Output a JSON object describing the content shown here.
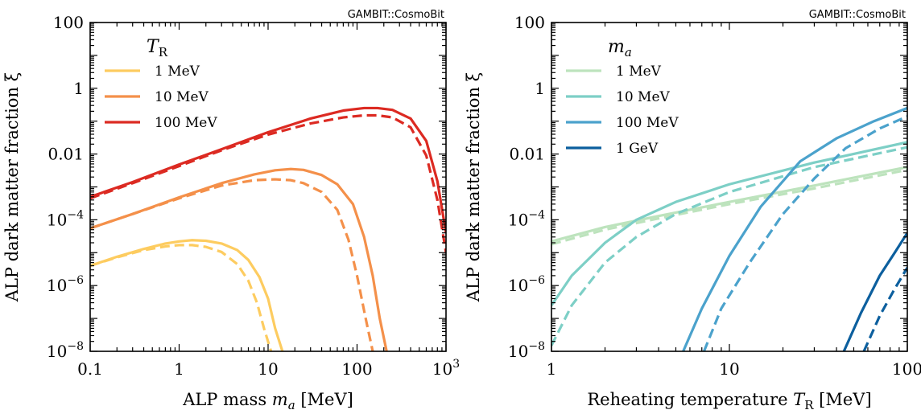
{
  "chart_data": [
    {
      "type": "line",
      "watermark": "GAMBIT::CosmoBit",
      "xlabel": "ALP mass m_a [MeV]",
      "ylabel": "ALP dark matter fraction ξ",
      "xscale": "log",
      "yscale": "log",
      "xlim": [
        0.1,
        1000
      ],
      "ylim": [
        1e-08,
        100
      ],
      "xticks": [
        {
          "value": 0.1,
          "label": "0.1"
        },
        {
          "value": 1,
          "label": "1"
        },
        {
          "value": 10,
          "label": "10"
        },
        {
          "value": 100,
          "label": "100"
        },
        {
          "value": 1000,
          "label": "10^3"
        }
      ],
      "yticks": [
        {
          "value": 1e-08,
          "label": "10^-8"
        },
        {
          "value": 1e-06,
          "label": "10^-6"
        },
        {
          "value": 0.0001,
          "label": "10^-4"
        },
        {
          "value": 0.01,
          "label": "0.01"
        },
        {
          "value": 1,
          "label": "1"
        },
        {
          "value": 100,
          "label": "100"
        }
      ],
      "legend": {
        "title": "T_R",
        "placement": "top-left"
      },
      "series": [
        {
          "name": "1 MeV",
          "color": "#fdcc60",
          "solid": [
            [
              0.1,
              4e-06
            ],
            [
              0.2,
              7.5e-06
            ],
            [
              0.4,
              1.3e-05
            ],
            [
              0.7,
              1.9e-05
            ],
            [
              1.0,
              2.2e-05
            ],
            [
              1.4,
              2.4e-05
            ],
            [
              2.0,
              2.3e-05
            ],
            [
              3.0,
              1.9e-05
            ],
            [
              4.5,
              1.2e-05
            ],
            [
              6.0,
              6e-06
            ],
            [
              8.0,
              1.8e-06
            ],
            [
              10.0,
              4e-07
            ],
            [
              12.0,
              5e-08
            ],
            [
              14.5,
              1e-08
            ]
          ],
          "dashed": [
            [
              0.1,
              4e-06
            ],
            [
              0.2,
              7.2e-06
            ],
            [
              0.4,
              1.2e-05
            ],
            [
              0.7,
              1.55e-05
            ],
            [
              1.0,
              1.7e-05
            ],
            [
              1.4,
              1.7e-05
            ],
            [
              2.0,
              1.5e-05
            ],
            [
              3.0,
              1.05e-05
            ],
            [
              4.5,
              4.5e-06
            ],
            [
              6.0,
              1.4e-06
            ],
            [
              7.5,
              3e-07
            ],
            [
              9.0,
              5e-08
            ],
            [
              10.8,
              1e-08
            ]
          ]
        },
        {
          "name": "10 MeV",
          "color": "#f4904a",
          "solid": [
            [
              0.1,
              5.5e-05
            ],
            [
              0.3,
              0.00015
            ],
            [
              1.0,
              0.00048
            ],
            [
              3.0,
              0.0013
            ],
            [
              7.0,
              0.0024
            ],
            [
              12.0,
              0.0032
            ],
            [
              18.0,
              0.0035
            ],
            [
              25.0,
              0.0033
            ],
            [
              40.0,
              0.0023
            ],
            [
              60.0,
              0.0012
            ],
            [
              90.0,
              0.0003
            ],
            [
              120.0,
              3e-05
            ],
            [
              150.0,
              2e-06
            ],
            [
              180.0,
              1e-07
            ],
            [
              215.0,
              1e-08
            ]
          ],
          "dashed": [
            [
              0.1,
              5.5e-05
            ],
            [
              0.3,
              0.00015
            ],
            [
              1.0,
              0.00045
            ],
            [
              3.0,
              0.0011
            ],
            [
              7.0,
              0.0016
            ],
            [
              12.0,
              0.0017
            ],
            [
              18.0,
              0.0016
            ],
            [
              25.0,
              0.0013
            ],
            [
              40.0,
              0.0007
            ],
            [
              60.0,
              0.0002
            ],
            [
              80.0,
              2.5e-05
            ],
            [
              100.0,
              2e-06
            ],
            [
              125.0,
              1e-07
            ],
            [
              150.0,
              1e-08
            ]
          ]
        },
        {
          "name": "100 MeV",
          "color": "#dc2a22",
          "solid": [
            [
              0.1,
              0.0005
            ],
            [
              0.3,
              0.0014
            ],
            [
              1.0,
              0.0048
            ],
            [
              3.0,
              0.014
            ],
            [
              10.0,
              0.046
            ],
            [
              30.0,
              0.12
            ],
            [
              70.0,
              0.21
            ],
            [
              120.0,
              0.25
            ],
            [
              170.0,
              0.25
            ],
            [
              250.0,
              0.22
            ],
            [
              400.0,
              0.12
            ],
            [
              600.0,
              0.025
            ],
            [
              800.0,
              0.0015
            ],
            [
              1000.0,
              4e-05
            ]
          ],
          "dashed": [
            [
              0.1,
              0.00045
            ],
            [
              0.3,
              0.0013
            ],
            [
              1.0,
              0.0043
            ],
            [
              3.0,
              0.013
            ],
            [
              10.0,
              0.039
            ],
            [
              30.0,
              0.085
            ],
            [
              70.0,
              0.13
            ],
            [
              120.0,
              0.15
            ],
            [
              170.0,
              0.15
            ],
            [
              250.0,
              0.13
            ],
            [
              400.0,
              0.065
            ],
            [
              600.0,
              0.009
            ],
            [
              800.0,
              0.0004
            ],
            [
              1000.0,
              1e-05
            ]
          ]
        }
      ]
    },
    {
      "type": "line",
      "watermark": "GAMBIT::CosmoBit",
      "xlabel": "Reheating temperature T_R [MeV]",
      "ylabel": "ALP dark matter fraction ξ",
      "xscale": "log",
      "yscale": "log",
      "xlim": [
        1,
        100
      ],
      "ylim": [
        1e-08,
        100
      ],
      "xticks": [
        {
          "value": 1,
          "label": "1"
        },
        {
          "value": 10,
          "label": "10"
        },
        {
          "value": 100,
          "label": "100"
        }
      ],
      "yticks": [
        {
          "value": 1e-08,
          "label": "10^-8"
        },
        {
          "value": 1e-06,
          "label": "10^-6"
        },
        {
          "value": 0.0001,
          "label": "10^-4"
        },
        {
          "value": 0.01,
          "label": "0.01"
        },
        {
          "value": 1,
          "label": "1"
        },
        {
          "value": 100,
          "label": "100"
        }
      ],
      "legend": {
        "title": "m_a",
        "placement": "top-left"
      },
      "series": [
        {
          "name": "1 MeV",
          "color": "#bde3bd",
          "solid": [
            [
              1.0,
              2.2e-05
            ],
            [
              2.0,
              6e-05
            ],
            [
              4.0,
              0.00013
            ],
            [
              10.0,
              0.00035
            ],
            [
              30.0,
              0.0011
            ],
            [
              100.0,
              0.004
            ]
          ],
          "dashed": [
            [
              1.0,
              1.8e-05
            ],
            [
              2.0,
              5e-05
            ],
            [
              4.0,
              0.00011
            ],
            [
              10.0,
              0.0003
            ],
            [
              30.0,
              0.0009
            ],
            [
              100.0,
              0.0033
            ]
          ]
        },
        {
          "name": "10 MeV",
          "color": "#7dcfc6",
          "solid": [
            [
              1.0,
              2.5e-07
            ],
            [
              1.3,
              2e-06
            ],
            [
              2.0,
              2e-05
            ],
            [
              3.0,
              0.0001
            ],
            [
              5.0,
              0.00035
            ],
            [
              10.0,
              0.0012
            ],
            [
              30.0,
              0.0055
            ],
            [
              100.0,
              0.023
            ]
          ],
          "dashed": [
            [
              1.0,
              1.5e-08
            ],
            [
              1.3,
              2.5e-07
            ],
            [
              2.0,
              5e-06
            ],
            [
              3.0,
              3e-05
            ],
            [
              5.0,
              0.00015
            ],
            [
              10.0,
              0.0007
            ],
            [
              30.0,
              0.004
            ],
            [
              100.0,
              0.016
            ]
          ]
        },
        {
          "name": "100 MeV",
          "color": "#4ba2cc",
          "solid": [
            [
              5.5,
              1e-08
            ],
            [
              7.0,
              2e-07
            ],
            [
              10.0,
              8e-06
            ],
            [
              15.0,
              0.00025
            ],
            [
              25.0,
              0.006
            ],
            [
              40.0,
              0.03
            ],
            [
              65.0,
              0.1
            ],
            [
              100.0,
              0.25
            ]
          ],
          "dashed": [
            [
              7.2,
              1e-08
            ],
            [
              9.0,
              2e-07
            ],
            [
              13.0,
              5e-06
            ],
            [
              20.0,
              0.00015
            ],
            [
              30.0,
              0.0018
            ],
            [
              45.0,
              0.015
            ],
            [
              70.0,
              0.06
            ],
            [
              100.0,
              0.14
            ]
          ]
        },
        {
          "name": "1 GeV",
          "color": "#0c5f9e",
          "solid": [
            [
              44.0,
              1e-08
            ],
            [
              55.0,
              1.5e-07
            ],
            [
              70.0,
              2e-06
            ],
            [
              85.0,
              1e-05
            ],
            [
              100.0,
              4e-05
            ]
          ],
          "dashed": [
            [
              57.0,
              1e-08
            ],
            [
              70.0,
              1.2e-07
            ],
            [
              85.0,
              8e-07
            ],
            [
              100.0,
              3.5e-06
            ]
          ]
        }
      ]
    }
  ]
}
